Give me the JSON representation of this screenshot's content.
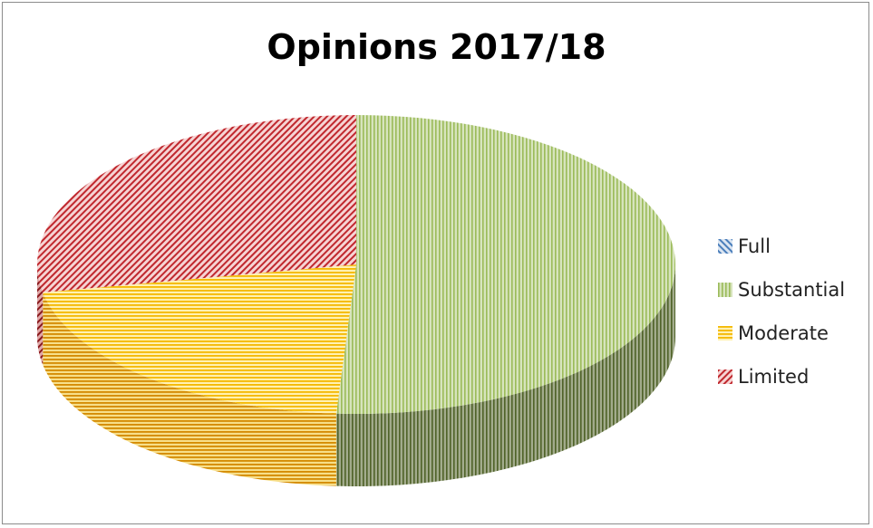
{
  "chart_data": {
    "type": "pie",
    "title": "Opinions 2017/18",
    "categories": [
      "Full",
      "Substantial",
      "Moderate",
      "Limited"
    ],
    "values": [
      0,
      51,
      21,
      28
    ],
    "colors": {
      "Full": "#4a7ebb",
      "Substantial": "#9bbb59",
      "Moderate": "#f5b800",
      "Limited": "#c0282e"
    },
    "legend_position": "right",
    "style": "3d-pie-patterned"
  }
}
